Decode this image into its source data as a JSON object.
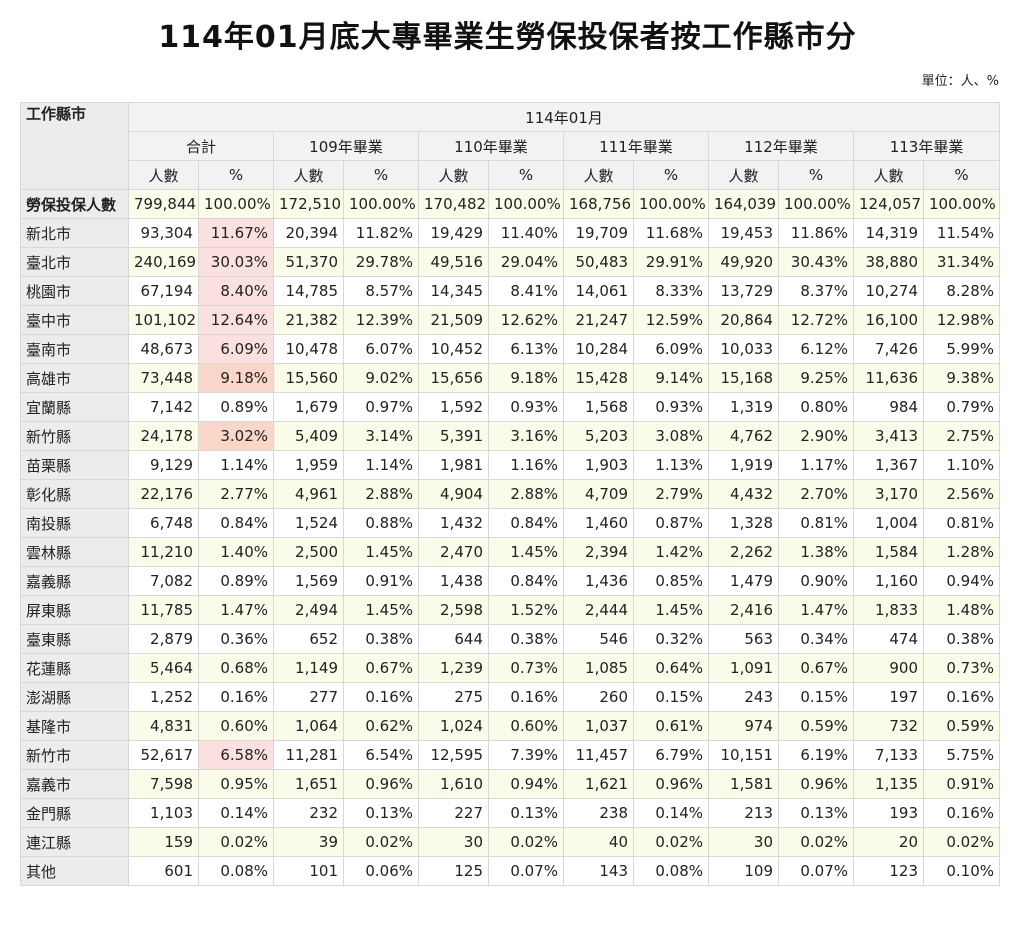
{
  "page": {
    "title": "114年01月底大專畢業生勞保投保者按工作縣市分",
    "unit": "單位：人、%"
  },
  "table": {
    "corner_label": "工作縣市",
    "period_label": "114年01月",
    "groups": [
      "合計",
      "109年畢業",
      "110年畢業",
      "111年畢業",
      "112年畢業",
      "113年畢業"
    ],
    "sub_labels": [
      "人數",
      "%"
    ],
    "rows": [
      {
        "name": "勞保投保人數",
        "values": [
          "799,844",
          "100.00%",
          "172,510",
          "100.00%",
          "170,482",
          "100.00%",
          "168,756",
          "100.00%",
          "164,039",
          "100.00%",
          "124,057",
          "100.00%"
        ]
      },
      {
        "name": "新北市",
        "values": [
          "93,304",
          "11.67%",
          "20,394",
          "11.82%",
          "19,429",
          "11.40%",
          "19,709",
          "11.68%",
          "19,453",
          "11.86%",
          "14,319",
          "11.54%"
        ]
      },
      {
        "name": "臺北市",
        "values": [
          "240,169",
          "30.03%",
          "51,370",
          "29.78%",
          "49,516",
          "29.04%",
          "50,483",
          "29.91%",
          "49,920",
          "30.43%",
          "38,880",
          "31.34%"
        ]
      },
      {
        "name": "桃園市",
        "values": [
          "67,194",
          "8.40%",
          "14,785",
          "8.57%",
          "14,345",
          "8.41%",
          "14,061",
          "8.33%",
          "13,729",
          "8.37%",
          "10,274",
          "8.28%"
        ]
      },
      {
        "name": "臺中市",
        "values": [
          "101,102",
          "12.64%",
          "21,382",
          "12.39%",
          "21,509",
          "12.62%",
          "21,247",
          "12.59%",
          "20,864",
          "12.72%",
          "16,100",
          "12.98%"
        ]
      },
      {
        "name": "臺南市",
        "values": [
          "48,673",
          "6.09%",
          "10,478",
          "6.07%",
          "10,452",
          "6.13%",
          "10,284",
          "6.09%",
          "10,033",
          "6.12%",
          "7,426",
          "5.99%"
        ]
      },
      {
        "name": "高雄市",
        "values": [
          "73,448",
          "9.18%",
          "15,560",
          "9.02%",
          "15,656",
          "9.18%",
          "15,428",
          "9.14%",
          "15,168",
          "9.25%",
          "11,636",
          "9.38%"
        ]
      },
      {
        "name": "宜蘭縣",
        "values": [
          "7,142",
          "0.89%",
          "1,679",
          "0.97%",
          "1,592",
          "0.93%",
          "1,568",
          "0.93%",
          "1,319",
          "0.80%",
          "984",
          "0.79%"
        ]
      },
      {
        "name": "新竹縣",
        "values": [
          "24,178",
          "3.02%",
          "5,409",
          "3.14%",
          "5,391",
          "3.16%",
          "5,203",
          "3.08%",
          "4,762",
          "2.90%",
          "3,413",
          "2.75%"
        ]
      },
      {
        "name": "苗栗縣",
        "values": [
          "9,129",
          "1.14%",
          "1,959",
          "1.14%",
          "1,981",
          "1.16%",
          "1,903",
          "1.13%",
          "1,919",
          "1.17%",
          "1,367",
          "1.10%"
        ]
      },
      {
        "name": "彰化縣",
        "values": [
          "22,176",
          "2.77%",
          "4,961",
          "2.88%",
          "4,904",
          "2.88%",
          "4,709",
          "2.79%",
          "4,432",
          "2.70%",
          "3,170",
          "2.56%"
        ]
      },
      {
        "name": "南投縣",
        "values": [
          "6,748",
          "0.84%",
          "1,524",
          "0.88%",
          "1,432",
          "0.84%",
          "1,460",
          "0.87%",
          "1,328",
          "0.81%",
          "1,004",
          "0.81%"
        ]
      },
      {
        "name": "雲林縣",
        "values": [
          "11,210",
          "1.40%",
          "2,500",
          "1.45%",
          "2,470",
          "1.45%",
          "2,394",
          "1.42%",
          "2,262",
          "1.38%",
          "1,584",
          "1.28%"
        ]
      },
      {
        "name": "嘉義縣",
        "values": [
          "7,082",
          "0.89%",
          "1,569",
          "0.91%",
          "1,438",
          "0.84%",
          "1,436",
          "0.85%",
          "1,479",
          "0.90%",
          "1,160",
          "0.94%"
        ]
      },
      {
        "name": "屏東縣",
        "values": [
          "11,785",
          "1.47%",
          "2,494",
          "1.45%",
          "2,598",
          "1.52%",
          "2,444",
          "1.45%",
          "2,416",
          "1.47%",
          "1,833",
          "1.48%"
        ]
      },
      {
        "name": "臺東縣",
        "values": [
          "2,879",
          "0.36%",
          "652",
          "0.38%",
          "644",
          "0.38%",
          "546",
          "0.32%",
          "563",
          "0.34%",
          "474",
          "0.38%"
        ]
      },
      {
        "name": "花蓮縣",
        "values": [
          "5,464",
          "0.68%",
          "1,149",
          "0.67%",
          "1,239",
          "0.73%",
          "1,085",
          "0.64%",
          "1,091",
          "0.67%",
          "900",
          "0.73%"
        ]
      },
      {
        "name": "澎湖縣",
        "values": [
          "1,252",
          "0.16%",
          "277",
          "0.16%",
          "275",
          "0.16%",
          "260",
          "0.15%",
          "243",
          "0.15%",
          "197",
          "0.16%"
        ]
      },
      {
        "name": "基隆市",
        "values": [
          "4,831",
          "0.60%",
          "1,064",
          "0.62%",
          "1,024",
          "0.60%",
          "1,037",
          "0.61%",
          "974",
          "0.59%",
          "732",
          "0.59%"
        ]
      },
      {
        "name": "新竹市",
        "values": [
          "52,617",
          "6.58%",
          "11,281",
          "6.54%",
          "12,595",
          "7.39%",
          "11,457",
          "6.79%",
          "10,151",
          "6.19%",
          "7,133",
          "5.75%"
        ]
      },
      {
        "name": "嘉義市",
        "values": [
          "7,598",
          "0.95%",
          "1,651",
          "0.96%",
          "1,610",
          "0.94%",
          "1,621",
          "0.96%",
          "1,581",
          "0.96%",
          "1,135",
          "0.91%"
        ]
      },
      {
        "name": "金門縣",
        "values": [
          "1,103",
          "0.14%",
          "232",
          "0.13%",
          "227",
          "0.13%",
          "238",
          "0.14%",
          "213",
          "0.13%",
          "193",
          "0.16%"
        ]
      },
      {
        "name": "連江縣",
        "values": [
          "159",
          "0.02%",
          "39",
          "0.02%",
          "30",
          "0.02%",
          "40",
          "0.02%",
          "30",
          "0.02%",
          "20",
          "0.02%"
        ]
      },
      {
        "name": "其他",
        "values": [
          "601",
          "0.08%",
          "101",
          "0.06%",
          "125",
          "0.07%",
          "143",
          "0.08%",
          "109",
          "0.07%",
          "123",
          "0.10%"
        ]
      }
    ],
    "highlight_colors": {
      "pink": "#fbe0e0",
      "peach": "#fad6c8",
      "alt_row": "#fbfbe9",
      "header": "#f2f2f2"
    }
  }
}
